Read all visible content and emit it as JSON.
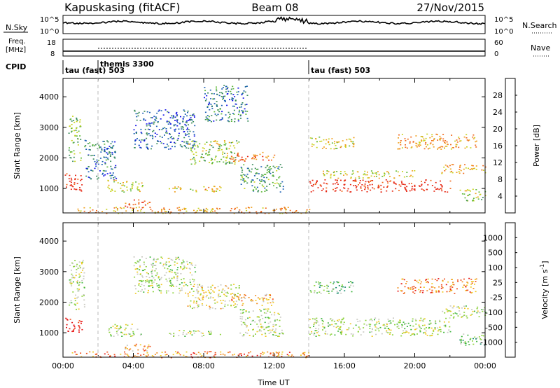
{
  "header": {
    "station": "Kapuskasing (fitACF)",
    "beam": "Beam 08",
    "date": "27/Nov/2015"
  },
  "noise_panel": {
    "left_label": "N.Sky",
    "right_label": "N.Search",
    "left_ticks": [
      "10^5",
      "10^0"
    ],
    "right_ticks": [
      "10^5",
      "10^0"
    ]
  },
  "freq_panel": {
    "left_label_1": "Freq.",
    "left_label_2": "[MHz]",
    "right_label": "Nave",
    "left_ticks": [
      "18",
      "8"
    ],
    "right_ticks": [
      "60",
      "0"
    ]
  },
  "cpid_panel": {
    "label": "CPID",
    "modes": [
      {
        "name": "tau (fast) 503",
        "start_hour": 0
      },
      {
        "name": "themis 3300",
        "start_hour": 2
      },
      {
        "name": "tau (fast) 503",
        "start_hour": 14
      }
    ]
  },
  "chart_data": [
    {
      "type": "heatmap",
      "name": "power",
      "ylabel": "Slant Range [km]",
      "xlabel": "",
      "x_range_hours": [
        0,
        24
      ],
      "ylim": [
        200,
        4600
      ],
      "yticks": [
        "1000",
        "2000",
        "3000",
        "4000"
      ],
      "colorbar": {
        "label": "Power [dB]",
        "ticks": [
          "4",
          "8",
          "12",
          "16",
          "20",
          "24",
          "28"
        ],
        "colors": [
          "#1010e6",
          "#1a5fb4",
          "#3a8c5a",
          "#5fb83a",
          "#c8d21e",
          "#f0a01e",
          "#f06a1e",
          "#e62814"
        ]
      },
      "regions": [
        {
          "t": [
            0.1,
            1.1
          ],
          "r": [
            900,
            1500
          ],
          "level": 0.95
        },
        {
          "t": [
            0.3,
            1.0
          ],
          "r": [
            1900,
            3400
          ],
          "level": 0.45
        },
        {
          "t": [
            1.2,
            3.0
          ],
          "r": [
            1300,
            2600
          ],
          "level": 0.25
        },
        {
          "t": [
            2.5,
            4.5
          ],
          "r": [
            900,
            1300
          ],
          "level": 0.55
        },
        {
          "t": [
            3.5,
            5.0
          ],
          "r": [
            380,
            650
          ],
          "level": 0.9
        },
        {
          "t": [
            4.0,
            7.5
          ],
          "r": [
            2300,
            3600
          ],
          "level": 0.2
        },
        {
          "t": [
            6.0,
            9.0
          ],
          "r": [
            900,
            1100
          ],
          "level": 0.6
        },
        {
          "t": [
            7.0,
            10.0
          ],
          "r": [
            1800,
            2600
          ],
          "level": 0.5
        },
        {
          "t": [
            9.5,
            12.0
          ],
          "r": [
            1900,
            2200
          ],
          "level": 0.8
        },
        {
          "t": [
            10.0,
            12.5
          ],
          "r": [
            900,
            1800
          ],
          "level": 0.35
        },
        {
          "t": [
            8.0,
            10.5
          ],
          "r": [
            3200,
            4400
          ],
          "level": 0.25
        },
        {
          "t": [
            0.5,
            14.0
          ],
          "r": [
            200,
            400
          ],
          "level": 0.7
        },
        {
          "t": [
            14.0,
            22.0
          ],
          "r": [
            900,
            1300
          ],
          "level": 0.97
        },
        {
          "t": [
            14.5,
            20.0
          ],
          "r": [
            1350,
            1600
          ],
          "level": 0.55
        },
        {
          "t": [
            14.0,
            16.5
          ],
          "r": [
            2300,
            2700
          ],
          "level": 0.6
        },
        {
          "t": [
            19.0,
            23.5
          ],
          "r": [
            2300,
            2800
          ],
          "level": 0.7
        },
        {
          "t": [
            21.5,
            24.0
          ],
          "r": [
            1500,
            1800
          ],
          "level": 0.7
        },
        {
          "t": [
            22.5,
            24.0
          ],
          "r": [
            600,
            1000
          ],
          "level": 0.5
        }
      ]
    },
    {
      "type": "heatmap",
      "name": "velocity",
      "ylabel": "Slant Range [km]",
      "xlabel": "Time UT",
      "x_range_hours": [
        0,
        24
      ],
      "xticks": [
        "00:00",
        "04:00",
        "08:00",
        "12:00",
        "16:00",
        "20:00",
        "00:00"
      ],
      "ylim": [
        200,
        4600
      ],
      "yticks": [
        "1000",
        "2000",
        "3000",
        "4000"
      ],
      "colorbar": {
        "label": "Velocity  [m s",
        "label_sup": "-1",
        "label_end": "]",
        "ticks": [
          "1000",
          "500",
          "100",
          "25",
          "-25",
          "-100",
          "-500",
          "-1000"
        ],
        "colors": [
          "#1a3cb4",
          "#1a8c6e",
          "#3cb43c",
          "#8cd23c",
          "#c8c8c0",
          "#f0c81e",
          "#f08c1e",
          "#f0501e",
          "#e61414"
        ]
      },
      "regions": [
        {
          "t": [
            0.1,
            1.1
          ],
          "r": [
            1000,
            1500
          ],
          "level": 0.97
        },
        {
          "t": [
            0.3,
            1.2
          ],
          "r": [
            1700,
            3400
          ],
          "level": 0.45
        },
        {
          "t": [
            2.5,
            4.5
          ],
          "r": [
            900,
            1300
          ],
          "level": 0.45
        },
        {
          "t": [
            3.5,
            5.0
          ],
          "r": [
            380,
            650
          ],
          "level": 0.7
        },
        {
          "t": [
            4.0,
            7.5
          ],
          "r": [
            2300,
            3500
          ],
          "level": 0.45
        },
        {
          "t": [
            6.0,
            9.0
          ],
          "r": [
            900,
            1100
          ],
          "level": 0.45
        },
        {
          "t": [
            7.0,
            10.0
          ],
          "r": [
            1800,
            2600
          ],
          "level": 0.55
        },
        {
          "t": [
            9.5,
            12.0
          ],
          "r": [
            1900,
            2300
          ],
          "level": 0.7
        },
        {
          "t": [
            10.0,
            12.5
          ],
          "r": [
            900,
            1800
          ],
          "level": 0.45
        },
        {
          "t": [
            0.5,
            14.0
          ],
          "r": [
            200,
            400
          ],
          "level": 0.75
        },
        {
          "t": [
            14.0,
            22.0
          ],
          "r": [
            900,
            1500
          ],
          "level": 0.45
        },
        {
          "t": [
            14.0,
            16.5
          ],
          "r": [
            2300,
            2700
          ],
          "level": 0.3
        },
        {
          "t": [
            19.0,
            23.5
          ],
          "r": [
            2300,
            2800
          ],
          "level": 0.75
        },
        {
          "t": [
            21.5,
            24.0
          ],
          "r": [
            1500,
            1900
          ],
          "level": 0.45
        },
        {
          "t": [
            22.5,
            24.0
          ],
          "r": [
            600,
            1000
          ],
          "level": 0.3
        }
      ]
    }
  ]
}
